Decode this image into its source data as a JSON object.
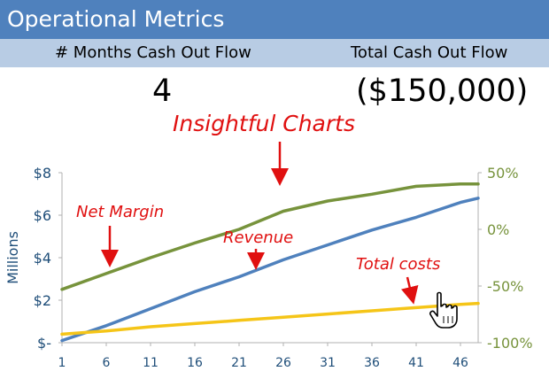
{
  "title": "Operational Metrics",
  "metrics": {
    "months_label": "# Months Cash Out Flow",
    "months_value": "4",
    "total_label": "Total Cash Out Flow",
    "total_value": "($150,000)"
  },
  "annotations": {
    "insightful": "Insightful Charts",
    "net_margin": "Net Margin",
    "revenue": "Revenue",
    "total_costs": "Total costs"
  },
  "colors": {
    "title_bar": "#4f81bd",
    "header_band": "#b8cce4",
    "annotation": "#e01010"
  },
  "cursor_icon": "hand-pointer-icon",
  "chart_data": {
    "type": "line",
    "x": {
      "min": 1,
      "max": 48,
      "ticks": [
        1,
        6,
        11,
        16,
        21,
        26,
        31,
        36,
        41,
        46
      ]
    },
    "y_left": {
      "label": "Millions",
      "min": 0,
      "max": 8,
      "ticks": [
        0,
        2,
        4,
        6,
        8
      ],
      "tick_labels": [
        "$-",
        "$2",
        "$4",
        "$6",
        "$8"
      ]
    },
    "y_right": {
      "min": -100,
      "max": 50,
      "ticks": [
        -100,
        -50,
        0,
        50
      ],
      "tick_labels": [
        "-100%",
        "-50%",
        "0%",
        "50%"
      ]
    },
    "series": [
      {
        "name": "Revenue",
        "axis": "left",
        "color": "#4f81bd",
        "points": [
          [
            1,
            0.1
          ],
          [
            6,
            0.8
          ],
          [
            11,
            1.6
          ],
          [
            16,
            2.4
          ],
          [
            21,
            3.1
          ],
          [
            26,
            3.9
          ],
          [
            31,
            4.6
          ],
          [
            36,
            5.3
          ],
          [
            41,
            5.9
          ],
          [
            46,
            6.6
          ],
          [
            48,
            6.8
          ]
        ]
      },
      {
        "name": "Total costs",
        "axis": "left",
        "color": "#f5c518",
        "points": [
          [
            1,
            0.4
          ],
          [
            6,
            0.55
          ],
          [
            11,
            0.75
          ],
          [
            16,
            0.9
          ],
          [
            21,
            1.05
          ],
          [
            26,
            1.2
          ],
          [
            31,
            1.35
          ],
          [
            36,
            1.5
          ],
          [
            41,
            1.65
          ],
          [
            46,
            1.8
          ],
          [
            48,
            1.85
          ]
        ]
      },
      {
        "name": "Net Margin",
        "axis": "right",
        "color": "#77933c",
        "points": [
          [
            1,
            -53
          ],
          [
            6,
            -39
          ],
          [
            11,
            -25
          ],
          [
            16,
            -12
          ],
          [
            21,
            0
          ],
          [
            26,
            16
          ],
          [
            31,
            25
          ],
          [
            36,
            31
          ],
          [
            41,
            38
          ],
          [
            46,
            40
          ],
          [
            48,
            40
          ]
        ]
      }
    ]
  }
}
